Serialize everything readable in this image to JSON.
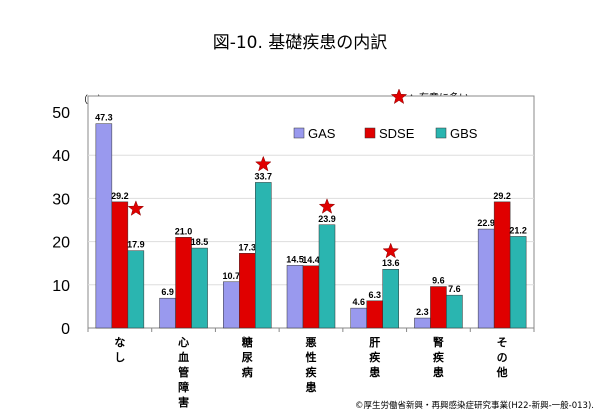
{
  "chart_data": {
    "type": "bar",
    "title": "図-10. 基礎疾患の内訳",
    "ylabel": "（%）",
    "ylim": [
      0,
      50
    ],
    "yticks": [
      0,
      10,
      20,
      30,
      40,
      50
    ],
    "grid": true,
    "legend_position": "top-right",
    "categories": [
      "なし",
      "心血管障害",
      "糖尿病",
      "悪性疾患",
      "肝疾患",
      "腎疾患",
      "その他"
    ],
    "series": [
      {
        "name": "GAS",
        "color": "#9999ee",
        "values": [
          47.3,
          6.9,
          10.7,
          14.5,
          4.6,
          2.3,
          22.9
        ]
      },
      {
        "name": "SDSE",
        "color": "#e00000",
        "values": [
          29.2,
          21.0,
          17.3,
          14.4,
          6.3,
          9.6,
          29.2
        ]
      },
      {
        "name": "GBS",
        "color": "#2ab5b0",
        "values": [
          17.9,
          18.5,
          33.7,
          23.9,
          13.6,
          7.6,
          21.2
        ]
      }
    ],
    "significant": [
      {
        "category": 0,
        "series": 1
      },
      {
        "category": 2,
        "series": 2
      },
      {
        "category": 3,
        "series": 2
      },
      {
        "category": 4,
        "series": 2
      }
    ],
    "annotation": "：有意に多い",
    "source": "©厚生労働省新興・再興感染症研究事業(H22-新興-一般-013)."
  }
}
